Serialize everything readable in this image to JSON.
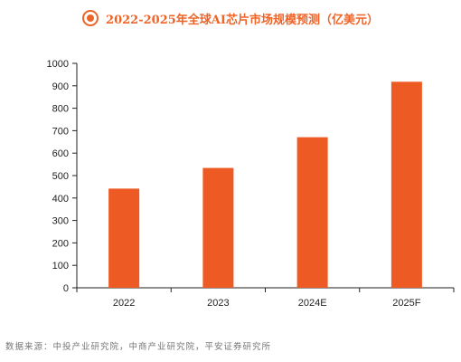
{
  "title": "2022-2025年全球AI芯片市场规模预测（亿美元）",
  "source": "数据来源：中投产业研究院，中商产业研究院，平安证券研究所",
  "colors": {
    "bar": "#ee5a24",
    "title": "#ee6428",
    "axis": "#222222"
  },
  "chart_data": {
    "type": "bar",
    "title": "2022-2025年全球AI芯片市场规模预测（亿美元）",
    "categories": [
      "2022",
      "2023",
      "2024E",
      "2025F"
    ],
    "values": [
      442,
      534,
      671,
      918
    ],
    "ylim": [
      0,
      1000
    ],
    "yticks": [
      0,
      100,
      200,
      300,
      400,
      500,
      600,
      700,
      800,
      900,
      1000
    ],
    "xlabel": "",
    "ylabel": "",
    "grid": false,
    "legend": "none"
  }
}
